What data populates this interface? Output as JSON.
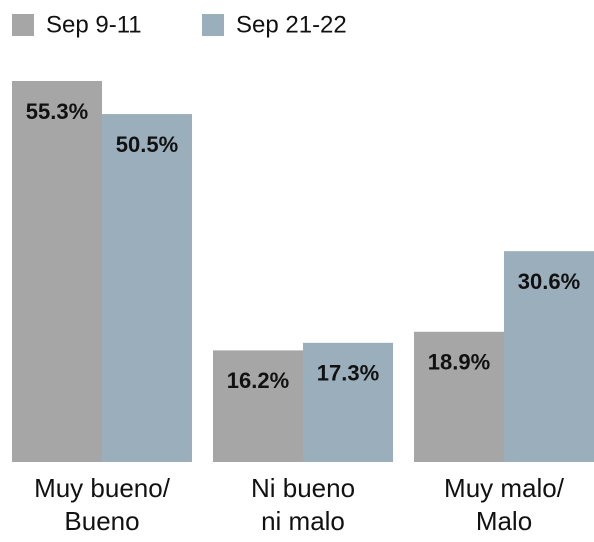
{
  "chart_data": {
    "type": "bar",
    "categories": [
      [
        "Muy bueno/",
        "Bueno"
      ],
      [
        "Ni bueno",
        "ni malo"
      ],
      [
        "Muy malo/",
        "Malo"
      ]
    ],
    "series": [
      {
        "name": "Sep 9-11",
        "color": "#a6a6a6",
        "values": [
          55.3,
          16.2,
          18.9
        ],
        "value_labels": [
          "55.3%",
          "16.2%",
          "18.9%"
        ]
      },
      {
        "name": "Sep 21-22",
        "color": "#9aafbb",
        "values": [
          50.5,
          17.3,
          30.6
        ],
        "value_labels": [
          "50.5%",
          "17.3%",
          "30.6%"
        ]
      }
    ],
    "ylim": [
      0,
      55.3
    ],
    "legend": "top-left"
  }
}
